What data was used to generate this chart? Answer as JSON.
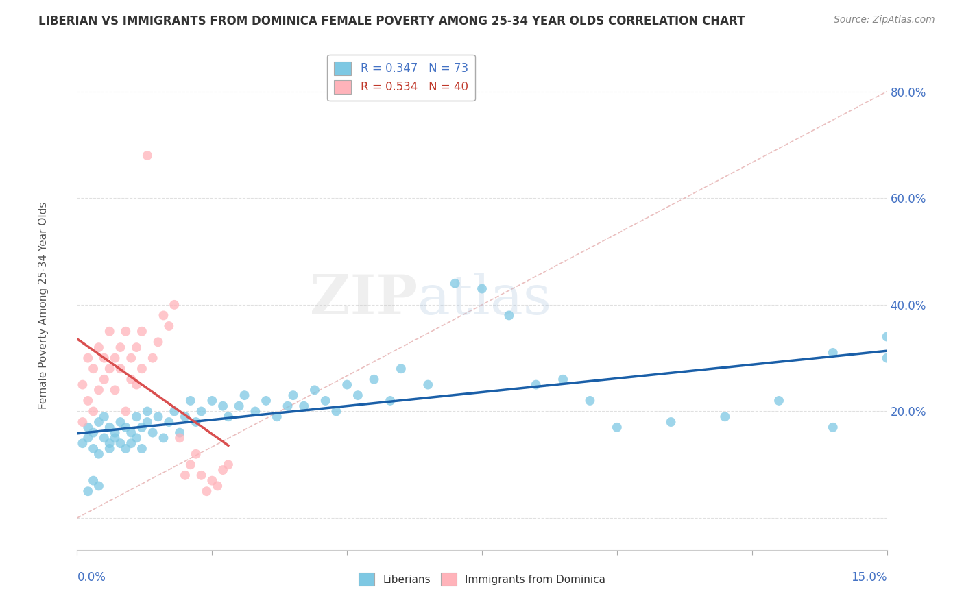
{
  "title": "LIBERIAN VS IMMIGRANTS FROM DOMINICA FEMALE POVERTY AMONG 25-34 YEAR OLDS CORRELATION CHART",
  "source": "Source: ZipAtlas.com",
  "ylabel": "Female Poverty Among 25-34 Year Olds",
  "xlim": [
    0.0,
    0.15
  ],
  "ylim": [
    -0.06,
    0.88
  ],
  "ytick_vals": [
    0.0,
    0.2,
    0.4,
    0.6,
    0.8
  ],
  "ytick_labels": [
    "",
    "20.0%",
    "40.0%",
    "60.0%",
    "80.0%"
  ],
  "liberian_color": "#7ec8e3",
  "dominica_color": "#ffb3ba",
  "liberian_line_color": "#1a5fa8",
  "dominica_line_color": "#d94f4f",
  "diagonal_color": "#e8b8b8",
  "watermark_zip": "ZIP",
  "watermark_atlas": "atlas",
  "background_color": "#ffffff",
  "liberian_R": 0.347,
  "liberian_N": 73,
  "dominica_R": 0.534,
  "dominica_N": 40,
  "lib_x": [
    0.001,
    0.002,
    0.002,
    0.003,
    0.003,
    0.004,
    0.004,
    0.005,
    0.005,
    0.006,
    0.006,
    0.006,
    0.007,
    0.007,
    0.008,
    0.008,
    0.009,
    0.009,
    0.01,
    0.01,
    0.011,
    0.011,
    0.012,
    0.012,
    0.013,
    0.013,
    0.014,
    0.015,
    0.016,
    0.017,
    0.018,
    0.019,
    0.02,
    0.021,
    0.022,
    0.023,
    0.025,
    0.027,
    0.028,
    0.03,
    0.031,
    0.033,
    0.035,
    0.037,
    0.039,
    0.04,
    0.042,
    0.044,
    0.046,
    0.048,
    0.05,
    0.052,
    0.055,
    0.058,
    0.06,
    0.065,
    0.07,
    0.075,
    0.08,
    0.085,
    0.09,
    0.095,
    0.1,
    0.11,
    0.12,
    0.13,
    0.14,
    0.14,
    0.15,
    0.15,
    0.002,
    0.003,
    0.004
  ],
  "lib_y": [
    0.14,
    0.17,
    0.15,
    0.13,
    0.16,
    0.18,
    0.12,
    0.15,
    0.19,
    0.14,
    0.17,
    0.13,
    0.16,
    0.15,
    0.14,
    0.18,
    0.17,
    0.13,
    0.16,
    0.14,
    0.19,
    0.15,
    0.17,
    0.13,
    0.18,
    0.2,
    0.16,
    0.19,
    0.15,
    0.18,
    0.2,
    0.16,
    0.19,
    0.22,
    0.18,
    0.2,
    0.22,
    0.21,
    0.19,
    0.21,
    0.23,
    0.2,
    0.22,
    0.19,
    0.21,
    0.23,
    0.21,
    0.24,
    0.22,
    0.2,
    0.25,
    0.23,
    0.26,
    0.22,
    0.28,
    0.25,
    0.44,
    0.43,
    0.38,
    0.25,
    0.26,
    0.22,
    0.17,
    0.18,
    0.19,
    0.22,
    0.17,
    0.31,
    0.3,
    0.34,
    0.05,
    0.07,
    0.06
  ],
  "dom_x": [
    0.001,
    0.001,
    0.002,
    0.002,
    0.003,
    0.003,
    0.004,
    0.004,
    0.005,
    0.005,
    0.006,
    0.006,
    0.007,
    0.007,
    0.008,
    0.008,
    0.009,
    0.009,
    0.01,
    0.01,
    0.011,
    0.011,
    0.012,
    0.012,
    0.013,
    0.014,
    0.015,
    0.016,
    0.017,
    0.018,
    0.019,
    0.02,
    0.021,
    0.022,
    0.023,
    0.024,
    0.025,
    0.026,
    0.027,
    0.028
  ],
  "dom_y": [
    0.18,
    0.25,
    0.22,
    0.3,
    0.2,
    0.28,
    0.24,
    0.32,
    0.26,
    0.3,
    0.28,
    0.35,
    0.24,
    0.3,
    0.32,
    0.28,
    0.2,
    0.35,
    0.26,
    0.3,
    0.32,
    0.25,
    0.35,
    0.28,
    0.68,
    0.3,
    0.33,
    0.38,
    0.36,
    0.4,
    0.15,
    0.08,
    0.1,
    0.12,
    0.08,
    0.05,
    0.07,
    0.06,
    0.09,
    0.1
  ]
}
